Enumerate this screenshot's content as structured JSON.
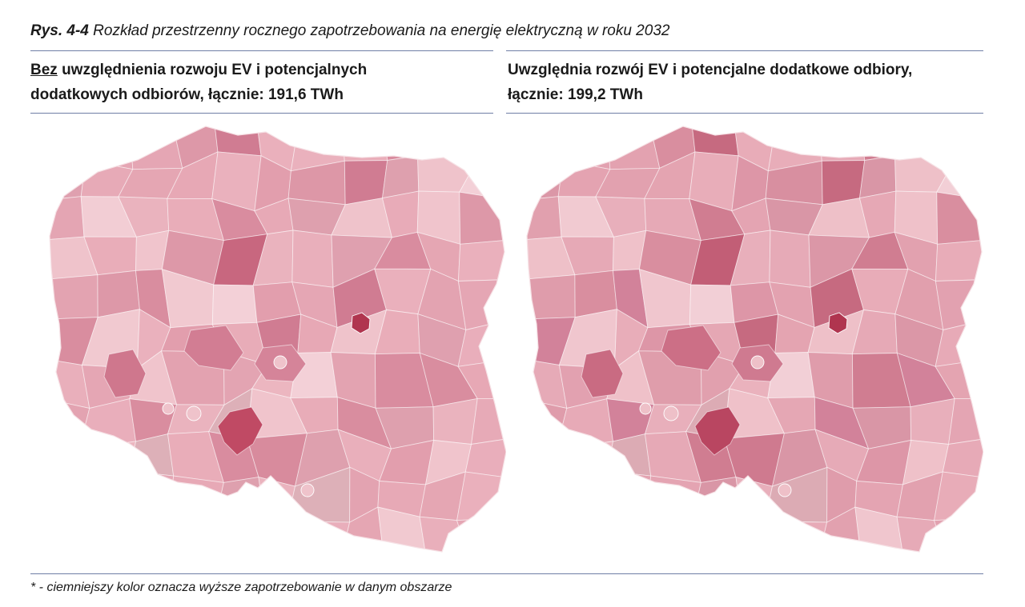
{
  "caption": {
    "label": "Rys. 4-4",
    "text": " Rozkład przestrzenny rocznego zapotrzebowania na energię elektryczną w roku 2032"
  },
  "left_panel": {
    "heading_underlined": "Bez",
    "heading_rest": " uwzględnienia rozwoju EV i potencjalnych dodatkowych odbiorów, łącznie: 191,6 TWh",
    "fills": [
      "#ecb6c0",
      "#e9adb9",
      "#eab3be",
      "#efc3cb",
      "#e3a3b1",
      "#e9afbb",
      "#eab1bd",
      "#f3d0d7",
      "#ddb0b8",
      "#e8abb8",
      "#e5a6b4",
      "#e9adb9",
      "#e29ead",
      "#e7aab7",
      "#dfa0af",
      "#e3a3b1",
      "#f0c4cc",
      "#dd97a7",
      "#e5a6b4",
      "#e8acb8",
      "#d98c9f",
      "#e7aab7",
      "#e9aebb",
      "#dd98a8",
      "#e7a9b6",
      "#d88b9d",
      "#e4a5b3",
      "#e3a2b0",
      "#d07c92",
      "#d98d9f",
      "#e5a6b3",
      "#e3a4b2",
      "#c8677f",
      "#f2cdd4",
      "#dea0ae",
      "#e7a8b5",
      "#eab0bc",
      "#f1c9d0"
    ],
    "dark_fill": "#b0354f",
    "hotspot_fills": [
      "#c04a64",
      "#d27d93",
      "#cf778d",
      "#d58499"
    ]
  },
  "right_panel": {
    "heading_underlined": "",
    "heading_rest": "Uwzględnia rozwój EV i potencjalne dodatkowe odbiory, łącznie: 199,2 TWh",
    "fills": [
      "#eab2bd",
      "#e6a8b5",
      "#e8afbb",
      "#eec0c8",
      "#e19fad",
      "#e6aab7",
      "#e8adb9",
      "#f2cfd6",
      "#dcabb4",
      "#e6a8b5",
      "#e2a1b0",
      "#e6a9b6",
      "#dd96a7",
      "#e4a5b3",
      "#db97a7",
      "#df9cab",
      "#efc1c9",
      "#d88fa0",
      "#e3a2b0",
      "#e5a7b4",
      "#d07d91",
      "#e4a3b1",
      "#e7aab7",
      "#d98e9f",
      "#e4a4b2",
      "#cf7a8f",
      "#e1a0ae",
      "#df9dab",
      "#c66a80",
      "#d2829a",
      "#e2a1af",
      "#e1a0ae",
      "#c25e76",
      "#f1cad1",
      "#d996a6",
      "#e4a4b1",
      "#e8acb8",
      "#f0c6ce"
    ],
    "dark_fill": "#b0354f",
    "hotspot_fills": [
      "#b94661",
      "#cc6f86",
      "#c96b82",
      "#cf7a90"
    ]
  },
  "footnote": "* - ciemniejszy kolor oznacza wyższe zapotrzebowanie w danym obszarze"
}
